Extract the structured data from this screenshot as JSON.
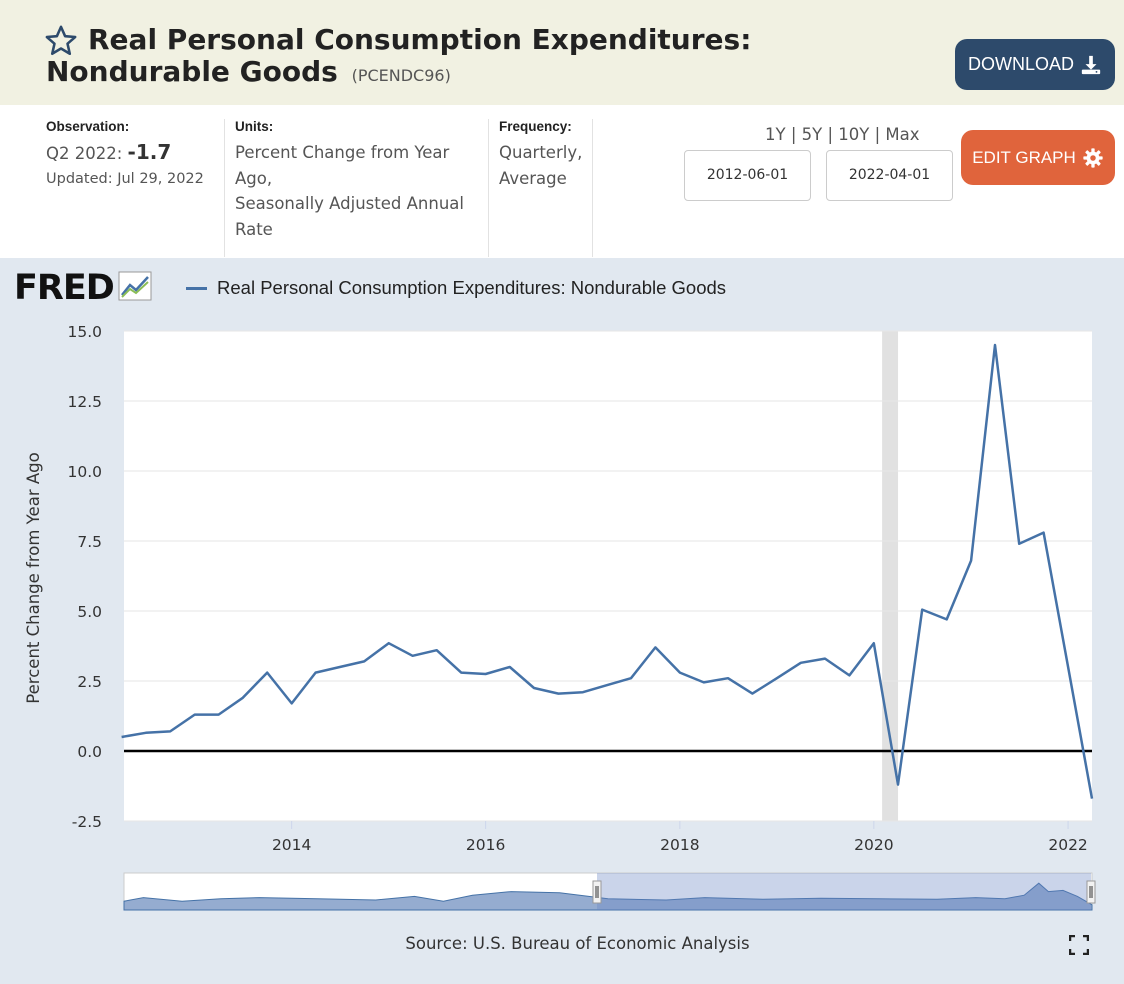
{
  "header": {
    "title": "Real Personal Consumption Expenditures: Nondurable Goods",
    "series_id": "(PCENDC96)",
    "download_label": "DOWNLOAD",
    "star_icon": "star-outline-icon"
  },
  "meta": {
    "observation_label": "Observation:",
    "observation_period": "Q2 2022:",
    "observation_value": "-1.7",
    "updated": "Updated: Jul 29, 2022",
    "units_label": "Units:",
    "units_lines": [
      "Percent Change from Year",
      "Ago,",
      "Seasonally Adjusted Annual",
      "Rate"
    ],
    "frequency_label": "Frequency:",
    "frequency_lines": [
      "Quarterly,",
      "Average"
    ]
  },
  "controls": {
    "range_1y": "1Y",
    "range_5y": "5Y",
    "range_10y": "10Y",
    "range_max": "Max",
    "separator": "|",
    "start_date": "2012-06-01",
    "end_date": "2022-04-01",
    "edit_label": "EDIT GRAPH"
  },
  "logo": "FRED",
  "footer": {
    "source": "Source: U.S. Bureau of Economic Analysis"
  },
  "colors": {
    "series": "#4572a7",
    "edit_button": "#e0643c",
    "download_button": "#2d4a6b",
    "recession": "#e1e1e1",
    "chart_background": "#e1e8f0"
  },
  "chart_data": {
    "type": "line",
    "title": "",
    "ylabel": "Percent Change from Year Ago",
    "xlabel": "",
    "ylim": [
      -2.5,
      15.0
    ],
    "yticks": [
      "-2.5",
      "0.0",
      "2.5",
      "5.0",
      "7.5",
      "10.0",
      "12.5",
      "15.0"
    ],
    "xticks": [
      "2014",
      "2016",
      "2018",
      "2020",
      "2022"
    ],
    "grid": true,
    "legend_position": "top-left",
    "recessions": [
      [
        "2020-02-01",
        "2020-04-01"
      ]
    ],
    "series": [
      {
        "name": "Real Personal Consumption Expenditures: Nondurable Goods",
        "x": [
          "2012-04-01",
          "2012-07-01",
          "2012-10-01",
          "2013-01-01",
          "2013-04-01",
          "2013-07-01",
          "2013-10-01",
          "2014-01-01",
          "2014-04-01",
          "2014-07-01",
          "2014-10-01",
          "2015-01-01",
          "2015-04-01",
          "2015-07-01",
          "2015-10-01",
          "2016-01-01",
          "2016-04-01",
          "2016-07-01",
          "2016-10-01",
          "2017-01-01",
          "2017-04-01",
          "2017-07-01",
          "2017-10-01",
          "2018-01-01",
          "2018-04-01",
          "2018-07-01",
          "2018-10-01",
          "2019-01-01",
          "2019-04-01",
          "2019-07-01",
          "2019-10-01",
          "2020-01-01",
          "2020-04-01",
          "2020-07-01",
          "2020-10-01",
          "2021-01-01",
          "2021-04-01",
          "2021-07-01",
          "2021-10-01",
          "2022-01-01",
          "2022-04-01"
        ],
        "values": [
          0.5,
          0.65,
          0.7,
          1.3,
          1.3,
          1.9,
          2.8,
          1.7,
          2.8,
          3.0,
          3.2,
          3.85,
          3.4,
          3.6,
          2.8,
          2.75,
          3.0,
          2.25,
          2.05,
          2.1,
          2.35,
          2.6,
          3.7,
          2.8,
          2.45,
          2.6,
          2.05,
          2.6,
          3.15,
          3.3,
          2.7,
          3.85,
          -1.2,
          5.05,
          4.7,
          6.8,
          14.5,
          7.4,
          7.8,
          3.0,
          -1.7
        ]
      }
    ]
  }
}
